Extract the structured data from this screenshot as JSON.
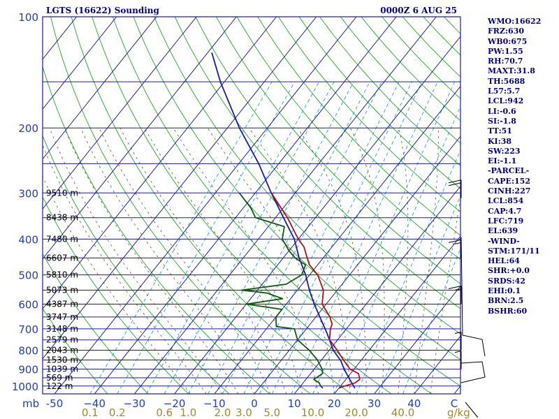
{
  "header": {
    "station": "LGTS (16622) Sounding",
    "time": "0000Z  6 AUG 25"
  },
  "indices": [
    "WMO:16622",
    "FRZ:630",
    "WB0:675",
    "PW:1.55",
    "RH:70.7",
    "MAXT:31.8",
    "TH:5688",
    "L57:5.7",
    "LCL:942",
    "LI:-0.6",
    "SI:-1.8",
    "TT:51",
    "KI:38",
    "SW:223",
    "EI:-1.1",
    "-PARCEL-",
    "CAPE:152",
    "CINH:227",
    "LCL:854",
    "CAP:4.7",
    "LFC:719",
    "EL:639",
    "-WIND-",
    "STM:171/11",
    "HEL:64",
    "SHR:+0.0",
    "SRDS:42",
    "EHI:0.1",
    "BRN:2.5",
    "BSHR:60"
  ],
  "chart_data": {
    "type": "line",
    "title": "LGTS (16622) Sounding",
    "subtitle": "0000Z  6 AUG 25",
    "xlabel_prefix": "mb",
    "xunit": "g/kg",
    "pressure_ticks": [
      {
        "p": 100,
        "label": "100"
      },
      {
        "p": 200,
        "label": "200"
      },
      {
        "p": 300,
        "label": "300"
      },
      {
        "p": 400,
        "label": "400"
      },
      {
        "p": 500,
        "label": "500"
      },
      {
        "p": 600,
        "label": "600"
      },
      {
        "p": 700,
        "label": "700"
      },
      {
        "p": 800,
        "label": "800"
      },
      {
        "p": 900,
        "label": "900"
      },
      {
        "p": 1000,
        "label": "1000"
      }
    ],
    "temp_ticks": [
      {
        "t": -50,
        "label": "-50"
      },
      {
        "t": -40,
        "label": "−40"
      },
      {
        "t": -30,
        "label": "−30"
      },
      {
        "t": -20,
        "label": "−20"
      },
      {
        "t": -10,
        "label": "−10"
      },
      {
        "t": 0,
        "label": "0"
      },
      {
        "t": 10,
        "label": "10"
      },
      {
        "t": 20,
        "label": "20"
      },
      {
        "t": 30,
        "label": "30"
      },
      {
        "t": 40,
        "label": "40"
      },
      {
        "t": 50,
        "label": "C"
      }
    ],
    "mixing_ratio_labels": [
      {
        "w": 0.1,
        "label": "0.1"
      },
      {
        "w": 0.2,
        "label": "0.2"
      },
      {
        "w": 0.6,
        "label": "0.6"
      },
      {
        "w": 1.0,
        "label": "1.0"
      },
      {
        "w": 2.0,
        "label": "2.0"
      },
      {
        "w": 3.0,
        "label": "3.0"
      },
      {
        "w": 5.0,
        "label": "5.0"
      },
      {
        "w": 10.0,
        "label": "10.0"
      },
      {
        "w": 20.0,
        "label": "20.0"
      },
      {
        "w": 40.0,
        "label": "40.0"
      }
    ],
    "heights": [
      {
        "p": 300,
        "label": "9510 m"
      },
      {
        "p": 350,
        "label": "8438 m"
      },
      {
        "p": 400,
        "label": "7480 m"
      },
      {
        "p": 450,
        "label": "6607 m"
      },
      {
        "p": 500,
        "label": "5810 m"
      },
      {
        "p": 550,
        "label": "5073 m"
      },
      {
        "p": 600,
        "label": "4387 m"
      },
      {
        "p": 650,
        "label": "3747 m"
      },
      {
        "p": 700,
        "label": "3148 m"
      },
      {
        "p": 750,
        "label": "2579 m"
      },
      {
        "p": 800,
        "label": "2043 m"
      },
      {
        "p": 850,
        "label": "1530 m"
      },
      {
        "p": 900,
        "label": "1039 m"
      },
      {
        "p": 950,
        "label": "569 m"
      },
      {
        "p": 1000,
        "label": "122 m"
      }
    ],
    "temperature": [
      [
        1013,
        20
      ],
      [
        1000,
        21
      ],
      [
        980,
        23
      ],
      [
        960,
        23.5
      ],
      [
        925,
        22
      ],
      [
        900,
        19
      ],
      [
        850,
        15.5
      ],
      [
        800,
        12
      ],
      [
        750,
        8
      ],
      [
        700,
        6
      ],
      [
        680,
        5.5
      ],
      [
        650,
        3.5
      ],
      [
        600,
        -1
      ],
      [
        550,
        -3.5
      ],
      [
        500,
        -8
      ],
      [
        470,
        -12
      ],
      [
        450,
        -14
      ],
      [
        420,
        -17
      ],
      [
        400,
        -20
      ],
      [
        350,
        -27
      ],
      [
        300,
        -36
      ]
    ],
    "dewpoint": [
      [
        1013,
        16
      ],
      [
        1000,
        15
      ],
      [
        980,
        14
      ],
      [
        960,
        12
      ],
      [
        925,
        13
      ],
      [
        900,
        12
      ],
      [
        850,
        9
      ],
      [
        800,
        5
      ],
      [
        750,
        0
      ],
      [
        700,
        -3
      ],
      [
        690,
        -8
      ],
      [
        650,
        -10
      ],
      [
        620,
        -10
      ],
      [
        600,
        -20
      ],
      [
        580,
        -12
      ],
      [
        560,
        -17
      ],
      [
        550,
        -24
      ],
      [
        530,
        -14
      ],
      [
        500,
        -12
      ],
      [
        470,
        -13
      ],
      [
        450,
        -17
      ],
      [
        430,
        -20
      ],
      [
        400,
        -24
      ],
      [
        370,
        -26
      ],
      [
        350,
        -35
      ],
      [
        330,
        -38
      ],
      [
        300,
        -44
      ]
    ],
    "parcel": [
      [
        1013,
        24
      ],
      [
        960,
        21
      ],
      [
        900,
        17.5
      ],
      [
        854,
        15
      ],
      [
        800,
        11
      ],
      [
        719,
        6
      ],
      [
        650,
        1
      ],
      [
        600,
        -3
      ],
      [
        550,
        -7
      ],
      [
        500,
        -11
      ],
      [
        450,
        -16
      ],
      [
        400,
        -21
      ],
      [
        350,
        -28
      ],
      [
        300,
        -36
      ],
      [
        250,
        -45
      ],
      [
        200,
        -57
      ],
      [
        150,
        -71
      ],
      [
        125,
        -79
      ]
    ],
    "wind_barbs": [
      {
        "p": 310,
        "dir": 240,
        "spd": 20
      },
      {
        "p": 450,
        "dir": 260,
        "spd": 15
      },
      {
        "p": 600,
        "dir": 270,
        "spd": 15
      },
      {
        "p": 800,
        "dir": 300,
        "spd": 5
      },
      {
        "p": 900,
        "dir": 310,
        "spd": 5
      }
    ],
    "hodograph_frame": true
  }
}
